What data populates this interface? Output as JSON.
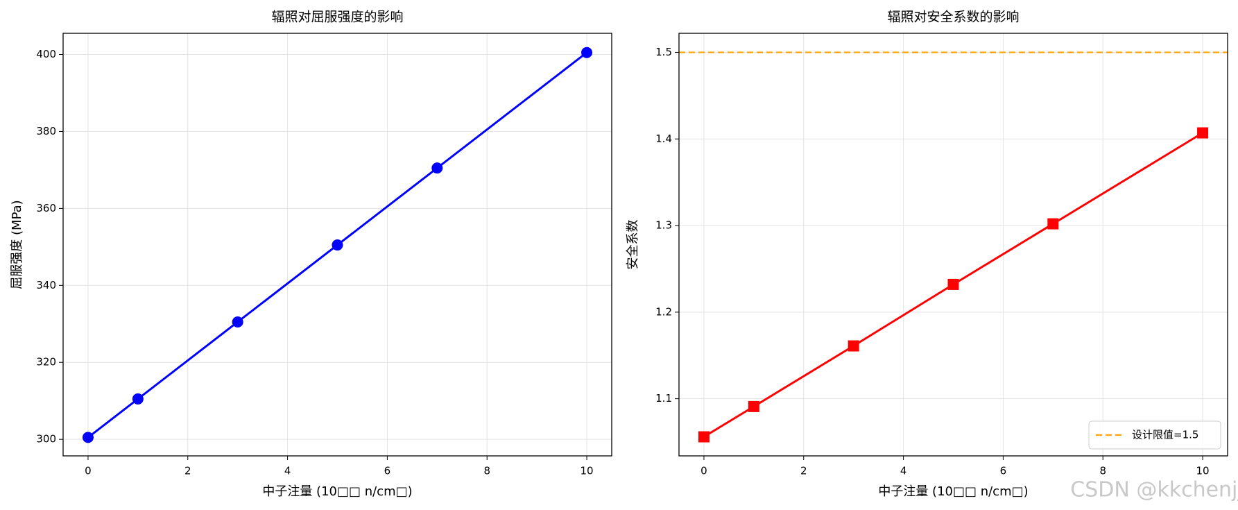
{
  "chart_data": [
    {
      "type": "line",
      "title": "辐照对屈服强度的影响",
      "xlabel": "中子注量 (10□□ n/cm□)",
      "ylabel": "屈服强度 (MPa)",
      "x": [
        0,
        1,
        3,
        5,
        7,
        10
      ],
      "series": [
        {
          "color": "#0000ff",
          "marker": "circle",
          "values": [
            300.5,
            310.5,
            330.5,
            350.5,
            370.5,
            400.5
          ]
        }
      ],
      "xlim": [
        -0.5,
        10.5
      ],
      "xticks": [
        0,
        2,
        4,
        6,
        8,
        10
      ],
      "ylim": [
        295.7,
        405.5
      ],
      "yticks": [
        300,
        320,
        340,
        360,
        380,
        400
      ],
      "grid": true
    },
    {
      "type": "line",
      "title": "辐照对安全系数的影响",
      "xlabel": "中子注量 (10□□ n/cm□)",
      "ylabel": "安全系数",
      "x": [
        0,
        1,
        3,
        5,
        7,
        10
      ],
      "series": [
        {
          "color": "#ff0000",
          "marker": "square",
          "values": [
            1.056,
            1.091,
            1.161,
            1.232,
            1.302,
            1.407
          ]
        }
      ],
      "hlines": [
        {
          "value": 1.5,
          "name": "设计限值=1.5",
          "color": "#ffa500"
        }
      ],
      "xlim": [
        -0.5,
        10.5
      ],
      "xticks": [
        0,
        2,
        4,
        6,
        8,
        10
      ],
      "ylim": [
        1.034,
        1.522
      ],
      "yticks": [
        1.1,
        1.2,
        1.3,
        1.4,
        1.5
      ],
      "grid": true,
      "legend": "lower right"
    }
  ],
  "watermark": "CSDN @kkchenjj"
}
